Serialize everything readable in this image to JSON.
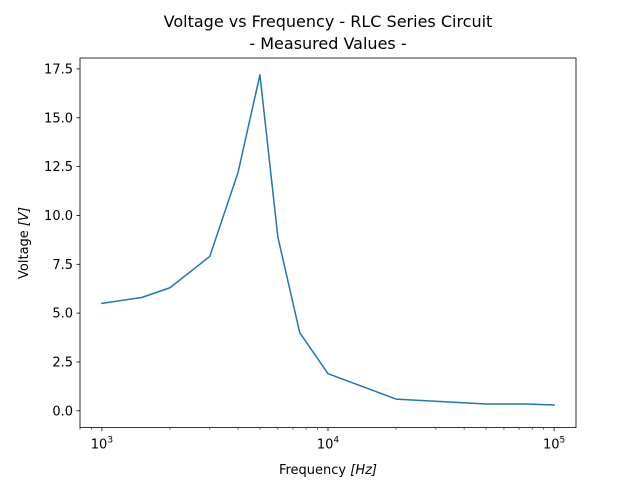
{
  "chart_data": {
    "type": "line",
    "title_line1": "Voltage vs Frequency - RLC Series Circuit",
    "title_line2": "- Measured Values -",
    "xlabel_main": "Frequency ",
    "xlabel_unit": "[Hz]",
    "ylabel_main": "Voltage ",
    "ylabel_unit": "[V]",
    "x_scale": "log",
    "xlim": [
      800,
      125000
    ],
    "ylim": [
      -0.86,
      18.06
    ],
    "x_ticks": [
      {
        "value": 1000,
        "base": "10",
        "exp": "3"
      },
      {
        "value": 10000,
        "base": "10",
        "exp": "4"
      },
      {
        "value": 100000,
        "base": "10",
        "exp": "5"
      }
    ],
    "y_ticks": [
      {
        "value": 0.0,
        "label": "0.0"
      },
      {
        "value": 2.5,
        "label": "2.5"
      },
      {
        "value": 5.0,
        "label": "5.0"
      },
      {
        "value": 7.5,
        "label": "7.5"
      },
      {
        "value": 10.0,
        "label": "10.0"
      },
      {
        "value": 12.5,
        "label": "12.5"
      },
      {
        "value": 15.0,
        "label": "15.0"
      },
      {
        "value": 17.5,
        "label": "17.5"
      }
    ],
    "grid": false,
    "line_color": "#1f77b4",
    "series": [
      {
        "x": [
          1000,
          1500,
          2000,
          3000,
          4000,
          5000,
          6000,
          7500,
          10000,
          20000,
          50000,
          75000,
          100000
        ],
        "y": [
          5.5,
          5.8,
          6.3,
          7.9,
          12.2,
          17.2,
          8.9,
          4.0,
          1.9,
          0.6,
          0.35,
          0.35,
          0.3
        ]
      }
    ]
  }
}
